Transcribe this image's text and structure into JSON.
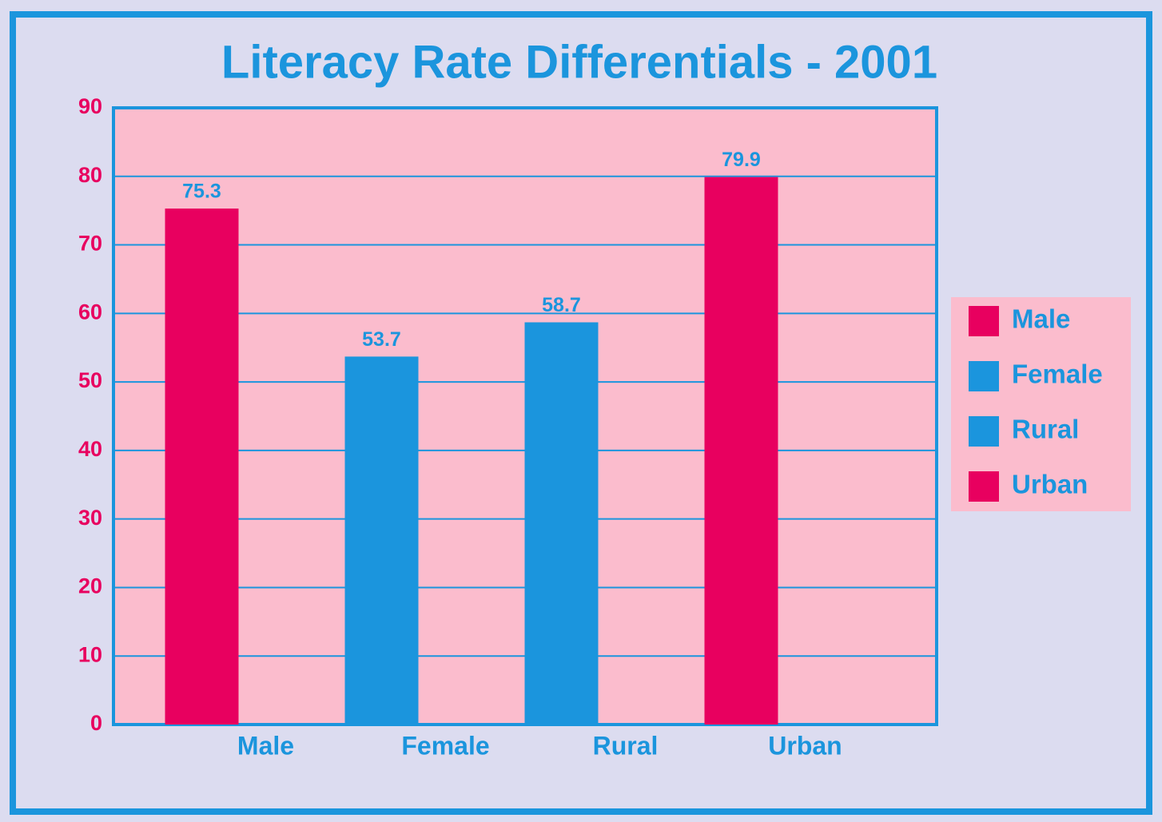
{
  "chart_data": {
    "type": "bar",
    "title": "Literacy Rate Differentials - 2001",
    "categories": [
      "Male",
      "Female",
      "Rural",
      "Urban"
    ],
    "values": [
      75.3,
      53.7,
      58.7,
      79.9
    ],
    "colors": [
      "#e8005f",
      "#1b95dd",
      "#1b95dd",
      "#e8005f"
    ],
    "ylim": [
      0,
      90
    ],
    "yticks": [
      0,
      10,
      20,
      30,
      40,
      50,
      60,
      70,
      80,
      90
    ],
    "grid": true,
    "legend": "right"
  }
}
